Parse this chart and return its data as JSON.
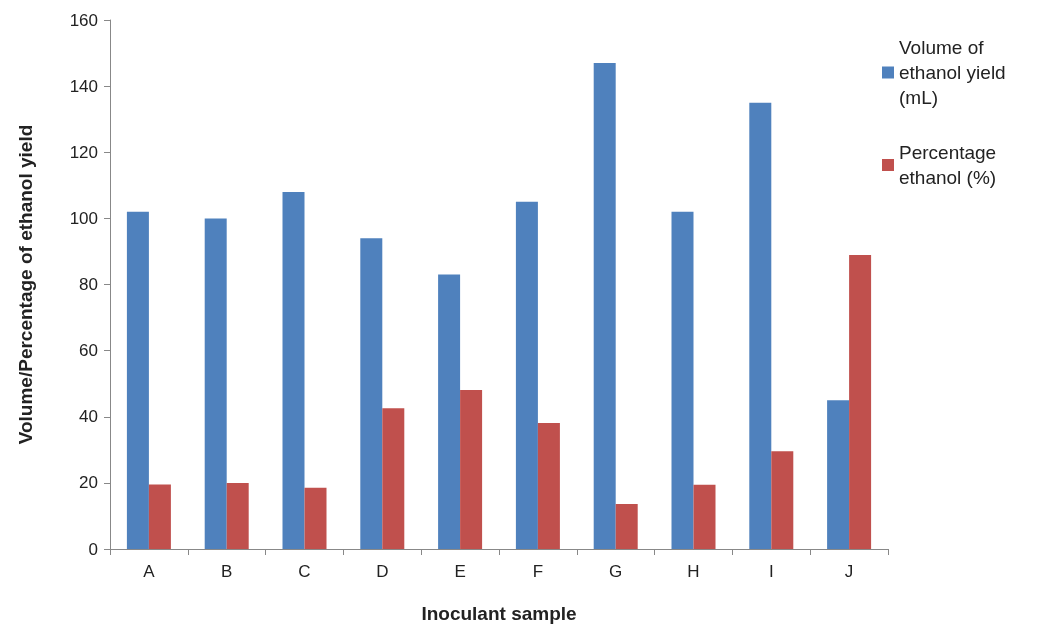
{
  "chart_data": {
    "type": "bar",
    "xlabel": "Inoculant sample",
    "ylabel": "Volume/Percentage of ethanol yield",
    "categories": [
      "A",
      "B",
      "C",
      "D",
      "E",
      "F",
      "G",
      "H",
      "I",
      "J"
    ],
    "series": [
      {
        "name": "Volume of ethanol yield (mL)",
        "color": "#4f81bd",
        "values": [
          102,
          100,
          108,
          94,
          83,
          105,
          147,
          102,
          135,
          45
        ]
      },
      {
        "name": "Percentage ethanol (%)",
        "color": "#c0504d",
        "values": [
          19.5,
          20,
          18.5,
          42.6,
          48.1,
          38.1,
          13.6,
          19.4,
          29.6,
          88.9
        ]
      }
    ],
    "ylim": [
      0,
      160
    ],
    "yticks": [
      0,
      20,
      40,
      60,
      80,
      100,
      120,
      140,
      160
    ],
    "grid": false,
    "legend": "right"
  }
}
